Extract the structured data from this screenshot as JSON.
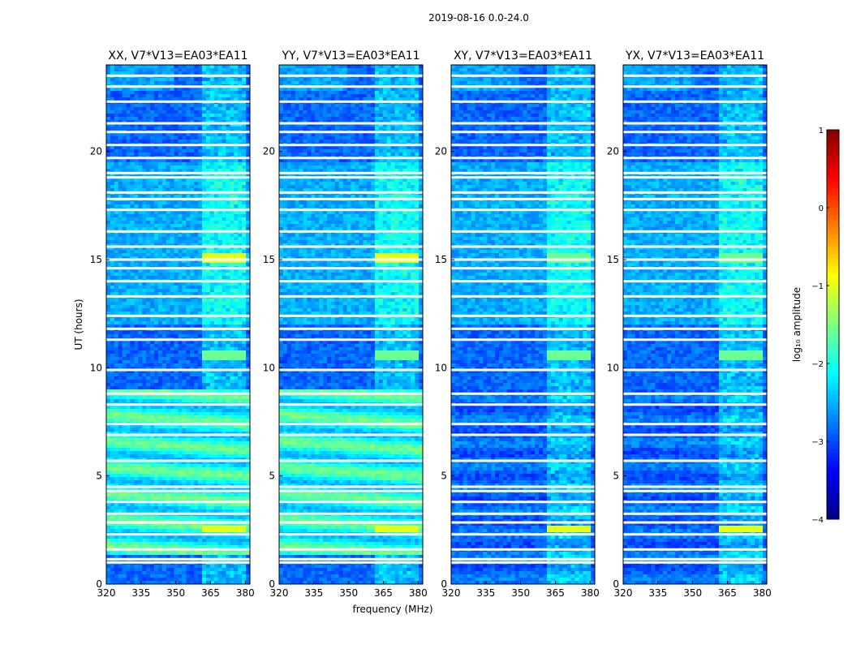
{
  "chart_data": {
    "type": "heatmap",
    "suptitle": "2019-08-16 0.0-24.0",
    "xlabel": "frequency (MHz)",
    "ylabel": "UT (hours)",
    "xlim": [
      320,
      382
    ],
    "ylim": [
      0,
      24
    ],
    "xticks": [
      320,
      335,
      350,
      365,
      380
    ],
    "yticks": [
      0,
      5,
      10,
      15,
      20
    ],
    "colorscale": "jet",
    "colorbar": {
      "label": "log₁₀ amplitude",
      "range": [
        -4,
        1
      ],
      "ticks": [
        1,
        0,
        -1,
        -2,
        -3,
        -4
      ],
      "tick_labels": [
        "1",
        "0",
        "−1",
        "−2",
        "−3",
        "−4"
      ]
    },
    "panels": [
      {
        "title": "XX, V7*V13=EA03*EA11",
        "pol": "XX",
        "strong_low_band": true
      },
      {
        "title": "YY, V7*V13=EA03*EA11",
        "pol": "YY",
        "strong_low_band": true
      },
      {
        "title": "XY, V7*V13=EA03*EA11",
        "pol": "XY",
        "strong_low_band": false
      },
      {
        "title": "YX, V7*V13=EA03*EA11",
        "pol": "YX",
        "strong_low_band": false
      }
    ],
    "rfi_band_mhz": [
      362,
      380
    ],
    "blank_hours": [
      1.0,
      1.15,
      1.6,
      2.3,
      2.85,
      3.25,
      3.8,
      4.3,
      4.5,
      5.7,
      6.9,
      7.4,
      8.3,
      8.8,
      9.9,
      11.3,
      11.8,
      12.4,
      13.3,
      14.0,
      14.6,
      15.0,
      15.6,
      16.3,
      17.3,
      17.8,
      18.1,
      18.8,
      19.0,
      19.7,
      20.3,
      20.9,
      21.3,
      22.3,
      23.0,
      23.5
    ]
  }
}
